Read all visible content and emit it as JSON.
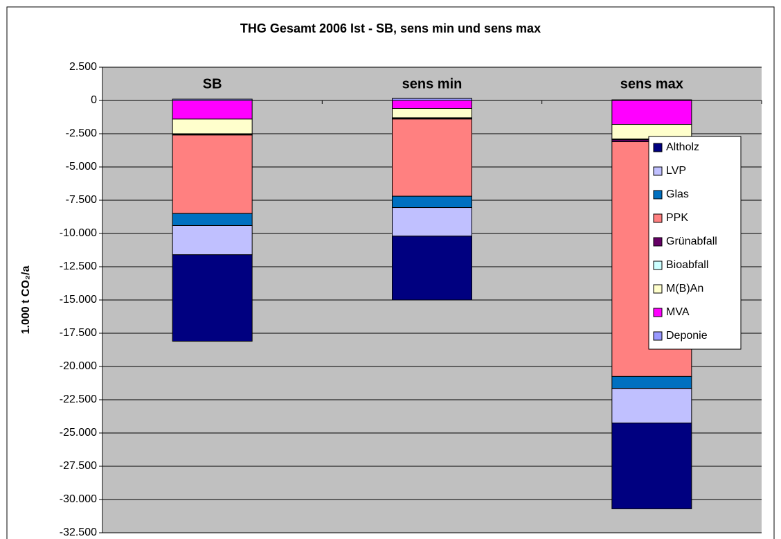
{
  "chart_data": {
    "type": "stacked_bar",
    "title": "THG Gesamt 2006 Ist - SB, sens min und sens max",
    "y_label": "1.000 t CO₂/a",
    "categories": [
      "SB",
      "sens min",
      "sens max"
    ],
    "series": [
      {
        "name": "Deponie",
        "color": "#9999ff",
        "values": [
          100,
          150,
          50
        ]
      },
      {
        "name": "MVA",
        "color": "#ff00ff",
        "values": [
          -1400,
          -600,
          -1800
        ]
      },
      {
        "name": "M(B)An",
        "color": "#ffffcc",
        "values": [
          -1100,
          -700,
          -1100
        ]
      },
      {
        "name": "Bioabfall",
        "color": "#ccffff",
        "values": [
          -50,
          -50,
          -50
        ]
      },
      {
        "name": "Grünabfall",
        "color": "#660066",
        "values": [
          -50,
          -50,
          -150
        ]
      },
      {
        "name": "PPK",
        "color": "#ff8080",
        "values": [
          -5900,
          -5800,
          -17650
        ]
      },
      {
        "name": "Glas",
        "color": "#0070c0",
        "values": [
          -900,
          -850,
          -900
        ]
      },
      {
        "name": "LVP",
        "color": "#c0c0ff",
        "values": [
          -2200,
          -2150,
          -2600
        ]
      },
      {
        "name": "Altholz",
        "color": "#000080",
        "values": [
          -6500,
          -4800,
          -6450
        ]
      }
    ],
    "ylim": [
      -32500,
      2500
    ],
    "yticks": [
      {
        "value": 2500,
        "label": "2.500"
      },
      0,
      {
        "value": -2500,
        "label": "-2.500"
      },
      {
        "value": -5000,
        "label": "-5.000"
      },
      {
        "value": -7500,
        "label": "-7.500"
      },
      {
        "value": -10000,
        "label": "-10.000"
      },
      {
        "value": -12500,
        "label": "-12.500"
      },
      {
        "value": -15000,
        "label": "-15.000"
      },
      {
        "value": -17500,
        "label": "-17.500"
      },
      {
        "value": -20000,
        "label": "-20.000"
      },
      {
        "value": -22500,
        "label": "-22.500"
      },
      {
        "value": -25000,
        "label": "-25.000"
      },
      {
        "value": -27500,
        "label": "-27.500"
      },
      {
        "value": -30000,
        "label": "-30.000"
      },
      {
        "value": -32500,
        "label": "-32.500"
      }
    ],
    "grid": true,
    "legend": "right"
  }
}
